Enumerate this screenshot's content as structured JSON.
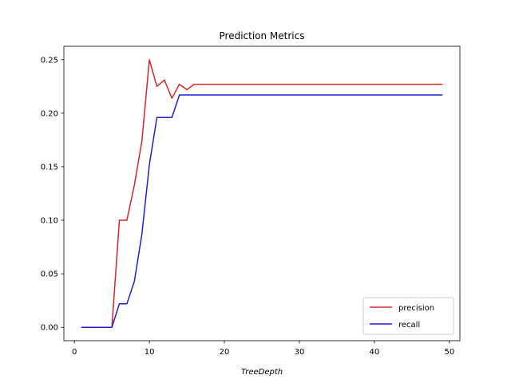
{
  "chart_data": {
    "type": "line",
    "title": "Prediction Metrics",
    "xlabel": "TreeDepth",
    "ylabel": "",
    "xlim": [
      -1.4,
      51.4
    ],
    "ylim": [
      -0.0125,
      0.2625
    ],
    "x_ticks": [
      0,
      10,
      20,
      30,
      40,
      50
    ],
    "x_tick_labels": [
      "0",
      "10",
      "20",
      "30",
      "40",
      "50"
    ],
    "y_ticks": [
      0.0,
      0.05,
      0.1,
      0.15,
      0.2,
      0.25
    ],
    "y_tick_labels": [
      "0.00",
      "0.05",
      "0.10",
      "0.15",
      "0.20",
      "0.25"
    ],
    "grid": false,
    "legend_position": "lower-right",
    "x": [
      1,
      2,
      3,
      4,
      5,
      6,
      7,
      8,
      9,
      10,
      11,
      12,
      13,
      14,
      15,
      16,
      17,
      18,
      19,
      20,
      21,
      22,
      23,
      24,
      25,
      26,
      27,
      28,
      29,
      30,
      31,
      32,
      33,
      34,
      35,
      36,
      37,
      38,
      39,
      40,
      41,
      42,
      43,
      44,
      45,
      46,
      47,
      48,
      49
    ],
    "series": [
      {
        "name": "precision",
        "color": "#d62728",
        "values": [
          0,
          0,
          0,
          0,
          0,
          0.1,
          0.1,
          0.133,
          0.174,
          0.25,
          0.225,
          0.231,
          0.214,
          0.227,
          0.222,
          0.227,
          0.227,
          0.227,
          0.227,
          0.227,
          0.227,
          0.227,
          0.227,
          0.227,
          0.227,
          0.227,
          0.227,
          0.227,
          0.227,
          0.227,
          0.227,
          0.227,
          0.227,
          0.227,
          0.227,
          0.227,
          0.227,
          0.227,
          0.227,
          0.227,
          0.227,
          0.227,
          0.227,
          0.227,
          0.227,
          0.227,
          0.227,
          0.227,
          0.227
        ]
      },
      {
        "name": "recall",
        "color": "#1f1fd6",
        "values": [
          0,
          0,
          0,
          0,
          0,
          0.022,
          0.022,
          0.043,
          0.087,
          0.152,
          0.196,
          0.196,
          0.196,
          0.217,
          0.217,
          0.217,
          0.217,
          0.217,
          0.217,
          0.217,
          0.217,
          0.217,
          0.217,
          0.217,
          0.217,
          0.217,
          0.217,
          0.217,
          0.217,
          0.217,
          0.217,
          0.217,
          0.217,
          0.217,
          0.217,
          0.217,
          0.217,
          0.217,
          0.217,
          0.217,
          0.217,
          0.217,
          0.217,
          0.217,
          0.217,
          0.217,
          0.217,
          0.217,
          0.217
        ]
      }
    ]
  }
}
